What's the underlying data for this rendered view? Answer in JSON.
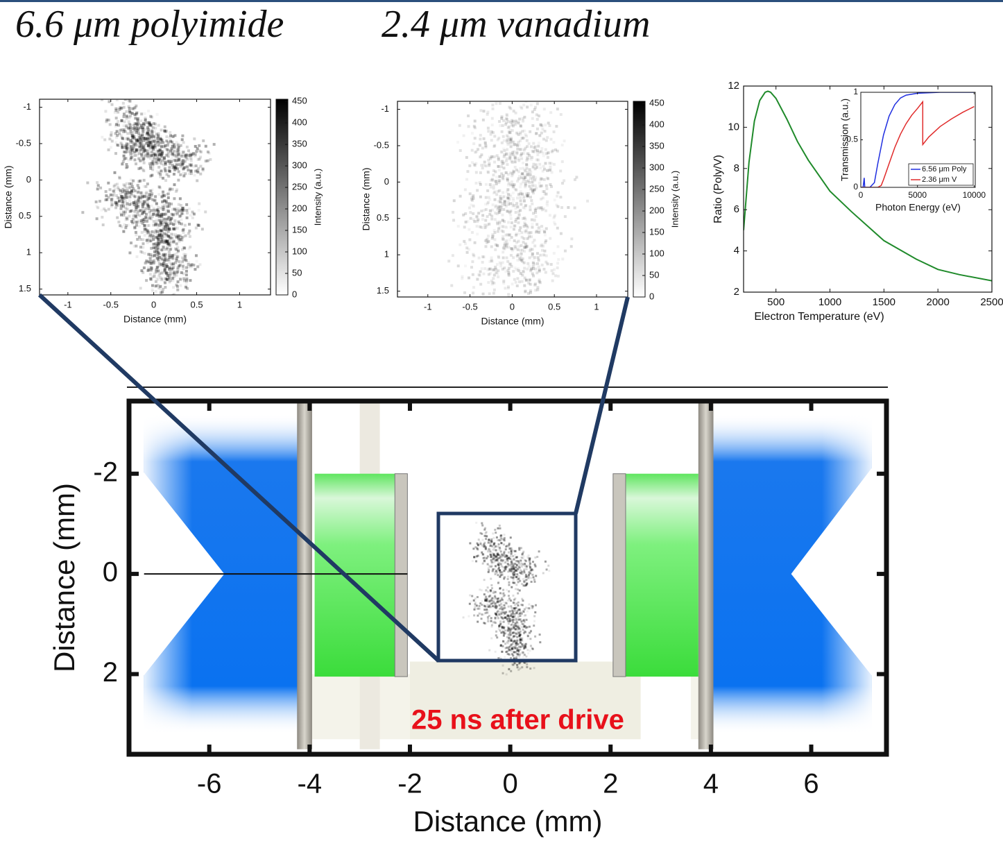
{
  "header": {
    "titles": [
      "6.6 μm polyimide",
      "2.4 μm vanadium"
    ]
  },
  "chart_data": [
    {
      "type": "heatmap",
      "xlabel": "Distance (mm)",
      "ylabel": "Distance (mm)",
      "xlim": [
        -1.33,
        1.36
      ],
      "ylim": [
        1.58,
        -1.11
      ],
      "xticks": [
        -1,
        -0.5,
        0,
        0.5,
        1
      ],
      "yticks": [
        -1,
        -0.5,
        0,
        0.5,
        1,
        1.5
      ],
      "colorbar": {
        "label": "Intensity (a.u.)",
        "lim": [
          0,
          455
        ],
        "ticks": [
          0,
          50,
          100,
          150,
          200,
          250,
          300,
          350,
          400,
          450
        ],
        "colors": [
          "#ffffff",
          "#000000"
        ]
      }
    },
    {
      "type": "heatmap",
      "xlabel": "Distance (mm)",
      "ylabel": "Distance (mm)",
      "xlim": [
        -1.36,
        1.37
      ],
      "ylim": [
        1.58,
        -1.11
      ],
      "xticks": [
        -1,
        -0.5,
        0,
        0.5,
        1
      ],
      "yticks": [
        -1,
        -0.5,
        0,
        0.5,
        1,
        1.5
      ],
      "colorbar": {
        "label": "Intensity (a.u.)",
        "lim": [
          0,
          455
        ],
        "ticks": [
          0,
          50,
          100,
          150,
          200,
          250,
          300,
          350,
          400,
          450
        ],
        "colors": [
          "#ffffff",
          "#000000"
        ]
      }
    },
    {
      "type": "line",
      "xlabel": "Electron Temperature (eV)",
      "ylabel": "Ratio (Poly/V)",
      "xlim": [
        200,
        2500
      ],
      "ylim": [
        2,
        12
      ],
      "xticks": [
        500,
        1000,
        1500,
        2000,
        2500
      ],
      "yticks": [
        2,
        4,
        6,
        8,
        10,
        12
      ],
      "series": [
        {
          "color": "#1f8a2a",
          "x": [
            200,
            250,
            300,
            350,
            400,
            425,
            450,
            500,
            600,
            700,
            800,
            1000,
            1200,
            1500,
            1800,
            2000,
            2200,
            2500
          ],
          "values": [
            5.0,
            8.3,
            10.3,
            11.3,
            11.7,
            11.75,
            11.7,
            11.4,
            10.4,
            9.3,
            8.4,
            6.9,
            5.9,
            4.5,
            3.6,
            3.1,
            2.85,
            2.55
          ]
        }
      ],
      "inset": {
        "type": "line",
        "xlabel": "Photon Energy (eV)",
        "ylabel": "Transmission (a.u.)",
        "xlim": [
          0,
          10100
        ],
        "ylim": [
          0,
          1
        ],
        "xticks": [
          0,
          5000,
          10000
        ],
        "yticks": [
          0,
          0.5,
          1
        ],
        "series": [
          {
            "name": "6.56 μm Poly",
            "color": "#1f2ee0",
            "x": [
              0,
              200,
              300,
              350,
              400,
              800,
              1200,
              1500,
              2000,
              2500,
              3000,
              3500,
              4000,
              5000,
              7000,
              10000
            ],
            "values": [
              0,
              0,
              0.1,
              0,
              0,
              0,
              0.05,
              0.25,
              0.55,
              0.75,
              0.87,
              0.94,
              0.97,
              0.99,
              1,
              1
            ]
          },
          {
            "name": "2.36 μm V",
            "color": "#e02a2a",
            "x": [
              0,
              1500,
              1800,
              2000,
              2500,
              3000,
              3500,
              4000,
              4500,
              5000,
              5465,
              5466,
              6000,
              7000,
              8000,
              9000,
              10000
            ],
            "values": [
              0,
              0,
              0.02,
              0.08,
              0.25,
              0.42,
              0.56,
              0.67,
              0.76,
              0.83,
              0.9,
              0.45,
              0.53,
              0.64,
              0.72,
              0.79,
              0.85
            ]
          }
        ]
      }
    },
    {
      "type": "image",
      "xlabel": "Distance (mm)",
      "ylabel": "Distance (mm)",
      "xlim": [
        -7.6,
        7.5
      ],
      "ylim": [
        3.6,
        -3.45
      ],
      "xticks": [
        -6,
        -4,
        -2,
        0,
        2,
        4,
        6
      ],
      "yticks": [
        -2,
        0,
        2
      ],
      "annotation": "25 ns after drive",
      "annotation_color": "#e8101a"
    }
  ]
}
